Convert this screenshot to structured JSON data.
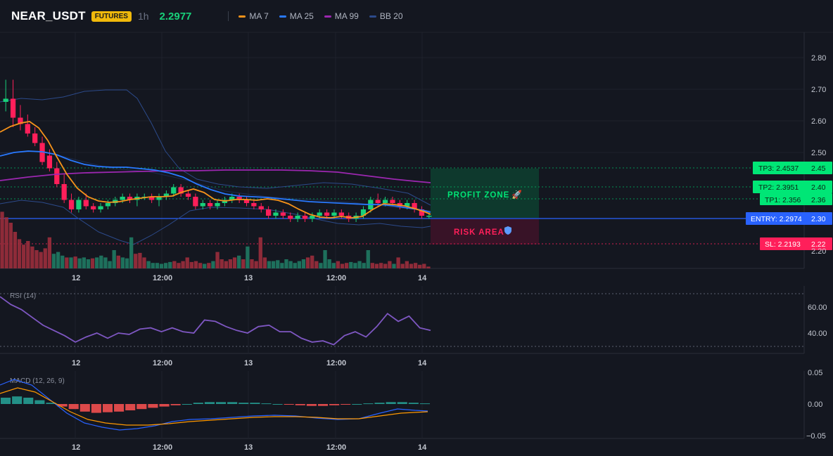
{
  "header": {
    "symbol": "NEAR_USDT",
    "badge": "FUTURES",
    "timeframe": "1h",
    "price": "2.2977",
    "legend": [
      {
        "label": "MA 7",
        "color": "#f7931a",
        "icon": "line-swatch-icon"
      },
      {
        "label": "MA 25",
        "color": "#2979ff",
        "icon": "line-swatch-icon"
      },
      {
        "label": "MA 99",
        "color": "#9c27b0",
        "icon": "line-swatch-icon"
      },
      {
        "label": "BB 20",
        "color": "#2c4a8a",
        "icon": "line-swatch-icon"
      }
    ]
  },
  "colors": {
    "up": "#26a69a",
    "up_bright": "#18d07a",
    "down": "#f23645",
    "down_bright": "#ff1f5a",
    "entry": "#2962ff",
    "profit": "#00e676",
    "risk": "#ff1f5a"
  },
  "zones": {
    "profit_label": "PROFIT ZONE",
    "profit_icon": "rocket-icon",
    "risk_label": "RISK AREA",
    "risk_icon": "shield-icon"
  },
  "levels": [
    {
      "key": "tp3",
      "label": "TP3: 2.4537",
      "axis": "2.45",
      "value": 2.4537
    },
    {
      "key": "tp2",
      "label": "TP2: 2.3951",
      "axis": "2.40",
      "value": 2.3951
    },
    {
      "key": "tp1",
      "label": "TP1: 2.356",
      "axis": "2.36",
      "value": 2.356
    },
    {
      "key": "entry",
      "label": "ENTRY: 2.2974",
      "axis": "2.30",
      "value": 2.2974
    },
    {
      "key": "sl",
      "label": "SL: 2.2193",
      "axis": "2.22",
      "value": 2.2193
    }
  ],
  "chart_data": [
    {
      "type": "candlestick",
      "title": "NEAR_USDT 1h",
      "yticks": [
        "2.80",
        "2.70",
        "2.60",
        "2.50",
        "2.20"
      ],
      "ylim": [
        2.2,
        2.8
      ],
      "xticks": [
        "12",
        "12:00",
        "13",
        "12:00",
        "14"
      ],
      "ma7": [
        2.62,
        2.59,
        2.6,
        2.58,
        2.52,
        2.46,
        2.42,
        2.37,
        2.33,
        2.33,
        2.33,
        2.32,
        2.33,
        2.34,
        2.35,
        2.35,
        2.35,
        2.36,
        2.36,
        2.36,
        2.36,
        2.37,
        2.36,
        2.35,
        2.34,
        2.35,
        2.34,
        2.34,
        2.33,
        2.32,
        2.31,
        2.3,
        2.3,
        2.31,
        2.32,
        2.33,
        2.33,
        2.32,
        2.31
      ],
      "ma25": [
        2.48,
        2.5,
        2.5,
        2.49,
        2.47,
        2.45,
        2.44,
        2.42,
        2.41,
        2.41,
        2.41,
        2.4,
        2.4,
        2.4,
        2.39,
        2.39,
        2.38,
        2.37,
        2.36,
        2.36,
        2.36,
        2.36,
        2.35,
        2.35,
        2.35,
        2.34,
        2.34,
        2.34,
        2.33,
        2.33,
        2.33,
        2.32,
        2.32,
        2.32,
        2.32,
        2.32,
        2.31,
        2.31,
        2.31
      ],
      "ma99": [
        2.41,
        2.42,
        2.43,
        2.43,
        2.43,
        2.44,
        2.44,
        2.44,
        2.45,
        2.45,
        2.45,
        2.45,
        2.45,
        2.45,
        2.45,
        2.45,
        2.45,
        2.45,
        2.45,
        2.45,
        2.45,
        2.44,
        2.44,
        2.44,
        2.43,
        2.43,
        2.43,
        2.43,
        2.42,
        2.42,
        2.42,
        2.41,
        2.41,
        2.41,
        2.41,
        2.41,
        2.41,
        2.4,
        2.4
      ],
      "rsi_yticks": [
        "60.00",
        "40.00"
      ],
      "rsi_label": "RSI (14)",
      "rsi": [
        68,
        62,
        58,
        52,
        46,
        42,
        38,
        33,
        37,
        40,
        36,
        40,
        39,
        43,
        44,
        41,
        44,
        41,
        40,
        50,
        49,
        45,
        42,
        40,
        45,
        46,
        41,
        41,
        36,
        33,
        34,
        31,
        38,
        41,
        37,
        45,
        55,
        49,
        53,
        44,
        42
      ],
      "macd_yticks": [
        "0.05",
        "0.00",
        "−0.05"
      ],
      "macd_label": "MACD (12, 26, 9)",
      "macd_hist": [
        0.01,
        0.012,
        0.01,
        0.006,
        0.002,
        -0.004,
        -0.008,
        -0.012,
        -0.014,
        -0.013,
        -0.012,
        -0.01,
        -0.008,
        -0.006,
        -0.004,
        -0.002,
        0.0,
        0.002,
        0.003,
        0.003,
        0.003,
        0.002,
        0.002,
        0.001,
        0.0,
        -0.001,
        -0.002,
        -0.003,
        -0.003,
        -0.002,
        -0.001,
        0.0,
        0.001,
        0.002,
        0.003,
        0.003,
        0.002,
        0.001
      ]
    }
  ]
}
